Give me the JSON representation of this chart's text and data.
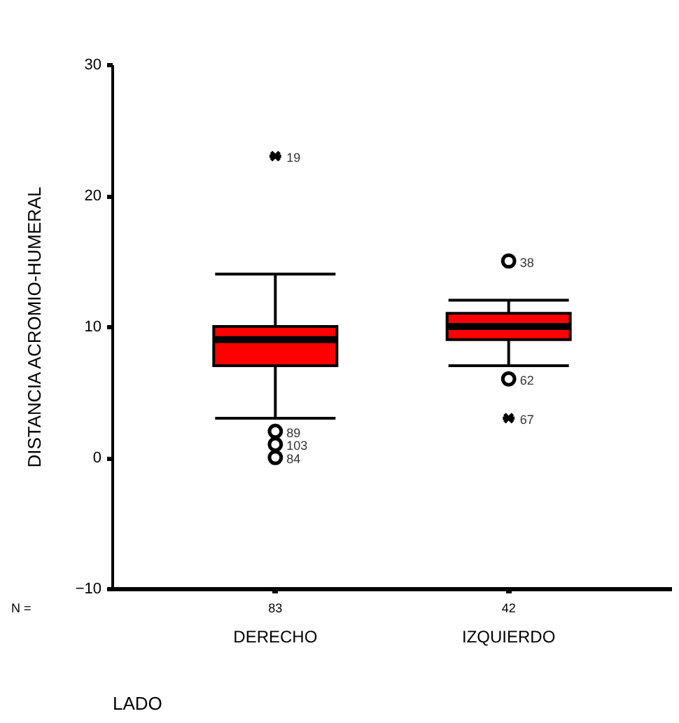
{
  "chart_data": {
    "type": "box",
    "ylabel": "DISTANCIA ACROMIO-HUMERAL",
    "xlabel": "LADO",
    "categories": [
      "DERECHO",
      "IZQUIERDO"
    ],
    "color": "#ff0000",
    "grid": false,
    "boxes": [
      {
        "low": 3,
        "q1": 7,
        "median": 9,
        "q3": 10,
        "high": 14
      },
      {
        "low": 7,
        "q1": 9,
        "median": 10,
        "q3": 11,
        "high": 12
      }
    ],
    "series": [
      {
        "type": "scatter",
        "marker": "circle",
        "color": "#000000",
        "x": [
          "DERECHO",
          "DERECHO",
          "DERECHO",
          "IZQUIERDO",
          "IZQUIERDO"
        ],
        "values": [
          2,
          1,
          0,
          15,
          6
        ]
      },
      {
        "type": "scatter",
        "marker": "cross",
        "color": "#000000",
        "x": [
          "DERECHO",
          "IZQUIERDO"
        ],
        "values": [
          23,
          3
        ]
      }
    ],
    "ylim": [
      -10,
      30
    ],
    "yticks": [
      -10,
      0,
      10,
      20,
      30
    ],
    "annotations": [
      "N =",
      "83",
      "42",
      {
        "text": "19",
        "x": "DERECHO",
        "y": 23
      },
      {
        "text": "89",
        "x": "DERECHO",
        "y": 2
      },
      {
        "text": "103",
        "x": "DERECHO",
        "y": 1
      },
      {
        "text": "84",
        "x": "DERECHO",
        "y": 0
      },
      {
        "text": "38",
        "x": "IZQUIERDO",
        "y": 15
      },
      {
        "text": "62",
        "x": "IZQUIERDO",
        "y": 6
      },
      {
        "text": "67",
        "x": "IZQUIERDO",
        "y": 3
      }
    ]
  }
}
